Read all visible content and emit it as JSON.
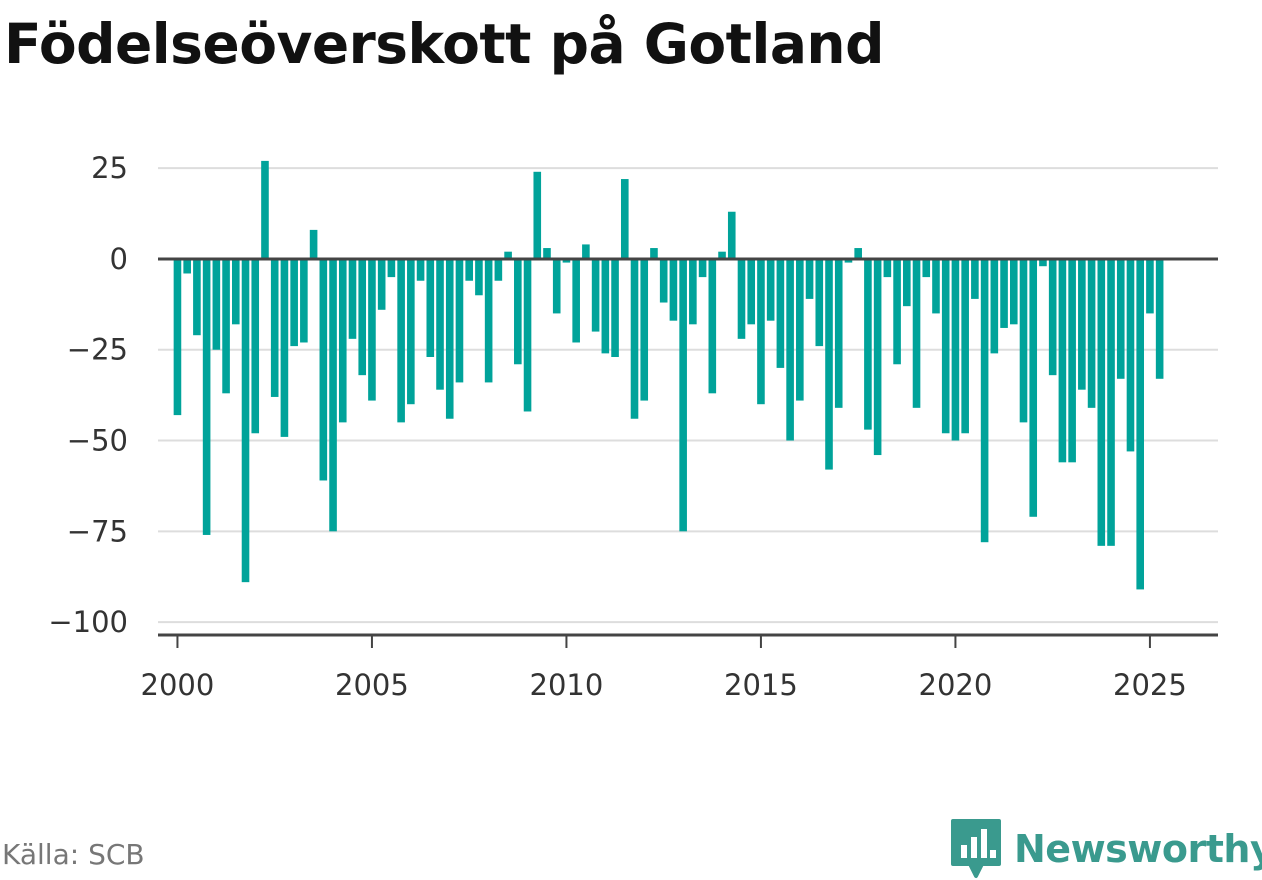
{
  "title": "Födelseöverskott på Gotland",
  "source": "Källa: SCB",
  "brand": {
    "name": "Newsworthy",
    "color": "#3a9a8e",
    "icon": "bar-chart-speech-bubble-icon"
  },
  "colors": {
    "bar": "#00a39a",
    "grid": "#dddddd",
    "axis": "#444444"
  },
  "chart_data": {
    "type": "bar",
    "title": "Födelseöverskott på Gotland",
    "xlabel": "",
    "ylabel": "",
    "x_unit": "quarter",
    "ylim": [
      -103,
      30
    ],
    "xlim": [
      1999.5,
      2026.75
    ],
    "yticks": [
      25,
      0,
      -25,
      -50,
      -75,
      -100
    ],
    "ytick_labels": [
      "25",
      "0",
      "−25",
      "−50",
      "−75",
      "−100"
    ],
    "xticks": [
      2000,
      2005,
      2010,
      2015,
      2020,
      2025
    ],
    "xtick_labels": [
      "2000",
      "2005",
      "2010",
      "2015",
      "2020",
      "2025"
    ],
    "grid": true,
    "legend": false,
    "series": [
      {
        "start": "2000-Q1",
        "values": [
          -43,
          -4,
          -21,
          -76,
          -25,
          -37,
          -18,
          -89,
          -48,
          27,
          -38,
          -49,
          -24,
          -23,
          8,
          -61,
          -75,
          -45,
          -22,
          -32,
          -39,
          -14,
          -5,
          -45,
          -40,
          -6,
          -27,
          -36,
          -44,
          -34,
          -6,
          -10,
          -34,
          -6,
          2,
          -29,
          -42,
          24,
          3,
          -15,
          -1,
          -23,
          4,
          -20,
          -26,
          -27,
          22,
          -44,
          -39,
          3,
          -12,
          -17,
          -75,
          -18,
          -5,
          -37,
          2,
          13,
          -22,
          -18,
          -40,
          -17,
          -30,
          -50,
          -39,
          -11,
          -24,
          -58,
          -41,
          -1,
          3,
          -47,
          -54,
          -5,
          -29,
          -13,
          -41,
          -5,
          -15,
          -48,
          -50,
          -48,
          -11,
          -78,
          -26,
          -19,
          -18,
          -45,
          -71,
          -2,
          -32,
          -56,
          -56,
          -36,
          -41,
          -79,
          -79,
          -33,
          -53,
          -91,
          -15,
          -33
        ]
      }
    ]
  }
}
